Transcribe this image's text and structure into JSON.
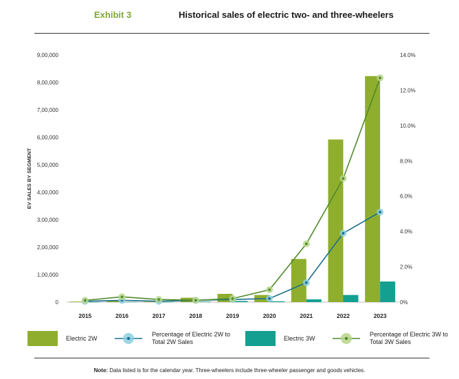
{
  "header": {
    "exhibit": "Exhibit 3",
    "title": "Historical sales of electric two- and three-wheelers"
  },
  "colors": {
    "bar_2w": "#8fae2e",
    "bar_3w": "#14a090",
    "line_2w": "#1a6e8c",
    "line_2w_marker": "#8ccfe0",
    "line_3w": "#4f8a2a",
    "line_3w_marker": "#b7d58a"
  },
  "chart_data": {
    "type": "bar",
    "categories": [
      "2015",
      "2016",
      "2017",
      "2018",
      "2019",
      "2020",
      "2021",
      "2022",
      "2023"
    ],
    "ylabel": "EV SALES BY SEGMENT",
    "ylim": [
      0,
      900000
    ],
    "y_ticks": [
      "0",
      "1,00,000",
      "2,00,000",
      "3,00,000",
      "4,00,000",
      "5,00,000",
      "6,00,000",
      "7,00,000",
      "8,00,000",
      "9,00,000"
    ],
    "y2lim": [
      0,
      14
    ],
    "y2_ticks": [
      "0%",
      "2.0%",
      "4.0%",
      "6.0%",
      "8.0%",
      "10.0%",
      "12.0%",
      "14.0%"
    ],
    "series": [
      {
        "name": "Electric 2W",
        "kind": "bar",
        "values": [
          2000,
          4000,
          2000,
          16000,
          30000,
          26000,
          157000,
          592000,
          823000
        ]
      },
      {
        "name": "Electric 3W",
        "kind": "bar",
        "values": [
          300,
          500,
          500,
          2000,
          4000,
          3000,
          10000,
          26000,
          75000
        ]
      },
      {
        "name": "Percentage of Electric 2W to Total 2W Sales",
        "kind": "line",
        "axis": "right",
        "values": [
          0.05,
          0.1,
          0.05,
          0.1,
          0.15,
          0.2,
          1.1,
          3.9,
          5.1
        ]
      },
      {
        "name": "Percentage of Electric 3W to Total 3W Sales",
        "kind": "line",
        "axis": "right",
        "values": [
          0.1,
          0.3,
          0.15,
          0.1,
          0.2,
          0.7,
          3.3,
          7.0,
          12.7
        ]
      }
    ],
    "legend_position": "bottom"
  },
  "legend": {
    "bar_2w": "Electric 2W",
    "line_2w_a": "Percentage of Electric 2W to",
    "line_2w_b": "Total 2W Sales",
    "bar_3w": "Electric 3W",
    "line_3w_a": "Percentage of Electric 3W to",
    "line_3w_b": "Total 3W Sales"
  },
  "note": {
    "label": "Note:",
    "text": " Data listed is for the calendar year. Three-wheelers include three-wheeler passenger and goods vehicles."
  }
}
